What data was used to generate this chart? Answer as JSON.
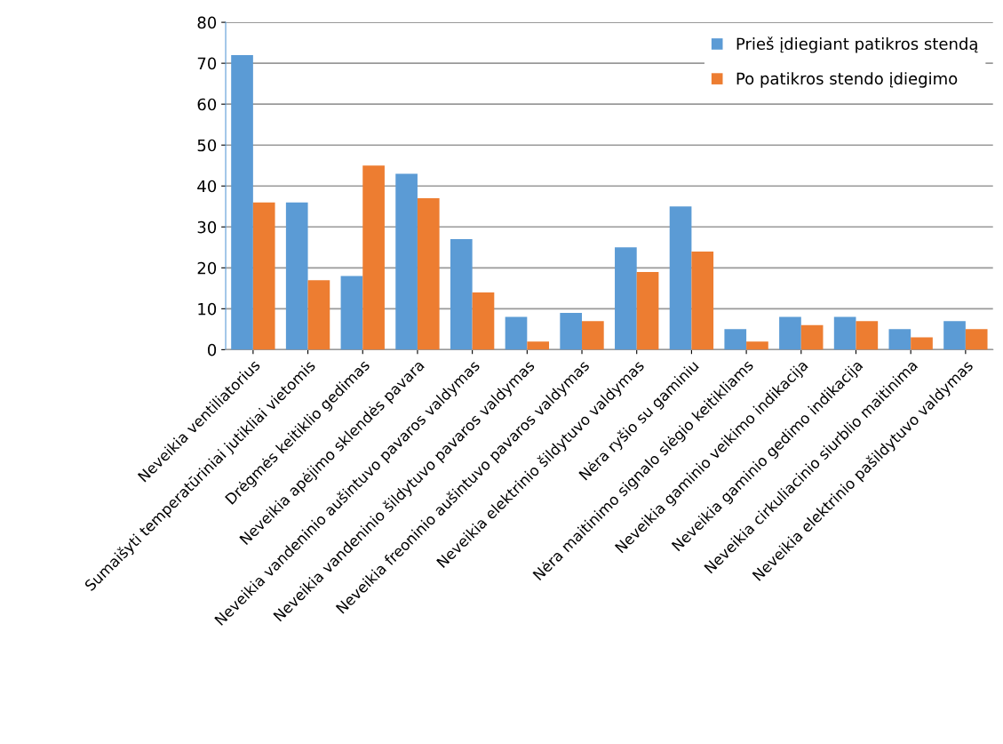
{
  "chart_data": {
    "type": "bar",
    "categories": [
      "Neveikia ventiliatorius",
      "Sumaišyti temperatūriniai jutikliai vietomis",
      "Drėgmės keitiklio gedimas",
      "Neveikia apėjimo sklendės pavara",
      "Neveikia vandeninio aušintuvo pavaros valdymas",
      "Neveikia vandeninio šildytuvo pavaros valdymas",
      "Neveikia freoninio aušintuvo pavaros valdymas",
      "Neveikia elektrinio šildytuvo valdymas",
      "Nėra ryšio su gaminiu",
      "Nėra maitinimo signalo slėgio keitikliams",
      "Neveikia gaminio veikimo indikacija",
      "Neveikia gaminio gedimo indikacija",
      "Neveikia cirkuliacinio siurblio maitinima",
      "Neveikia elektrinio pašildytuvo valdymas"
    ],
    "series": [
      {
        "name": "Prieš įdiegiant patikros stendą",
        "color": "#5b9bd5",
        "values": [
          72,
          36,
          18,
          43,
          27,
          8,
          9,
          25,
          35,
          5,
          8,
          8,
          5,
          7
        ]
      },
      {
        "name": "Po patikros stendo įdiegimo",
        "color": "#ed7d31",
        "values": [
          36,
          17,
          45,
          37,
          14,
          2,
          7,
          19,
          24,
          2,
          6,
          7,
          3,
          5
        ]
      }
    ],
    "ylim": [
      0,
      80
    ],
    "yticks": [
      0,
      10,
      20,
      30,
      40,
      50,
      60,
      70,
      80
    ],
    "grid": "y",
    "legend": "top right"
  }
}
